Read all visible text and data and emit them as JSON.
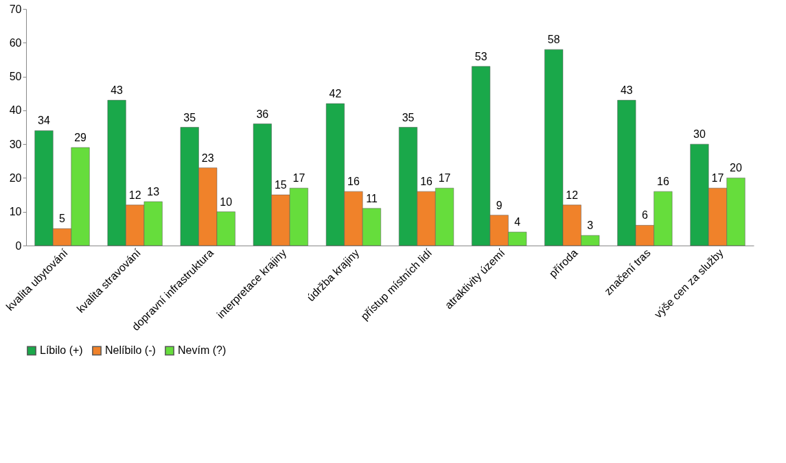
{
  "chart_data": {
    "type": "bar",
    "categories": [
      "kvalita ubytování",
      "kvalita stravování",
      "dopravní infrastruktura",
      "interpretace krajiny",
      "údržba krajiny",
      "přístup místních lidí",
      "atraktivity území",
      "příroda",
      "značení tras",
      "výše cen za služby"
    ],
    "series": [
      {
        "name": "Líbilo (+)",
        "color": "#1aa84a",
        "values": [
          34,
          43,
          35,
          36,
          42,
          35,
          53,
          58,
          43,
          30
        ]
      },
      {
        "name": "Nelíbilo (-)",
        "color": "#f0822a",
        "values": [
          5,
          12,
          23,
          15,
          16,
          16,
          9,
          12,
          6,
          17
        ]
      },
      {
        "name": "Nevím (?)",
        "color": "#66dd3c",
        "values": [
          29,
          13,
          10,
          17,
          11,
          17,
          4,
          3,
          16,
          20
        ]
      }
    ],
    "ylim": [
      0,
      70
    ],
    "yticks": [
      0,
      10,
      20,
      30,
      40,
      50,
      60,
      70
    ],
    "grid": false,
    "legend": "bottom",
    "data_labels": true
  }
}
